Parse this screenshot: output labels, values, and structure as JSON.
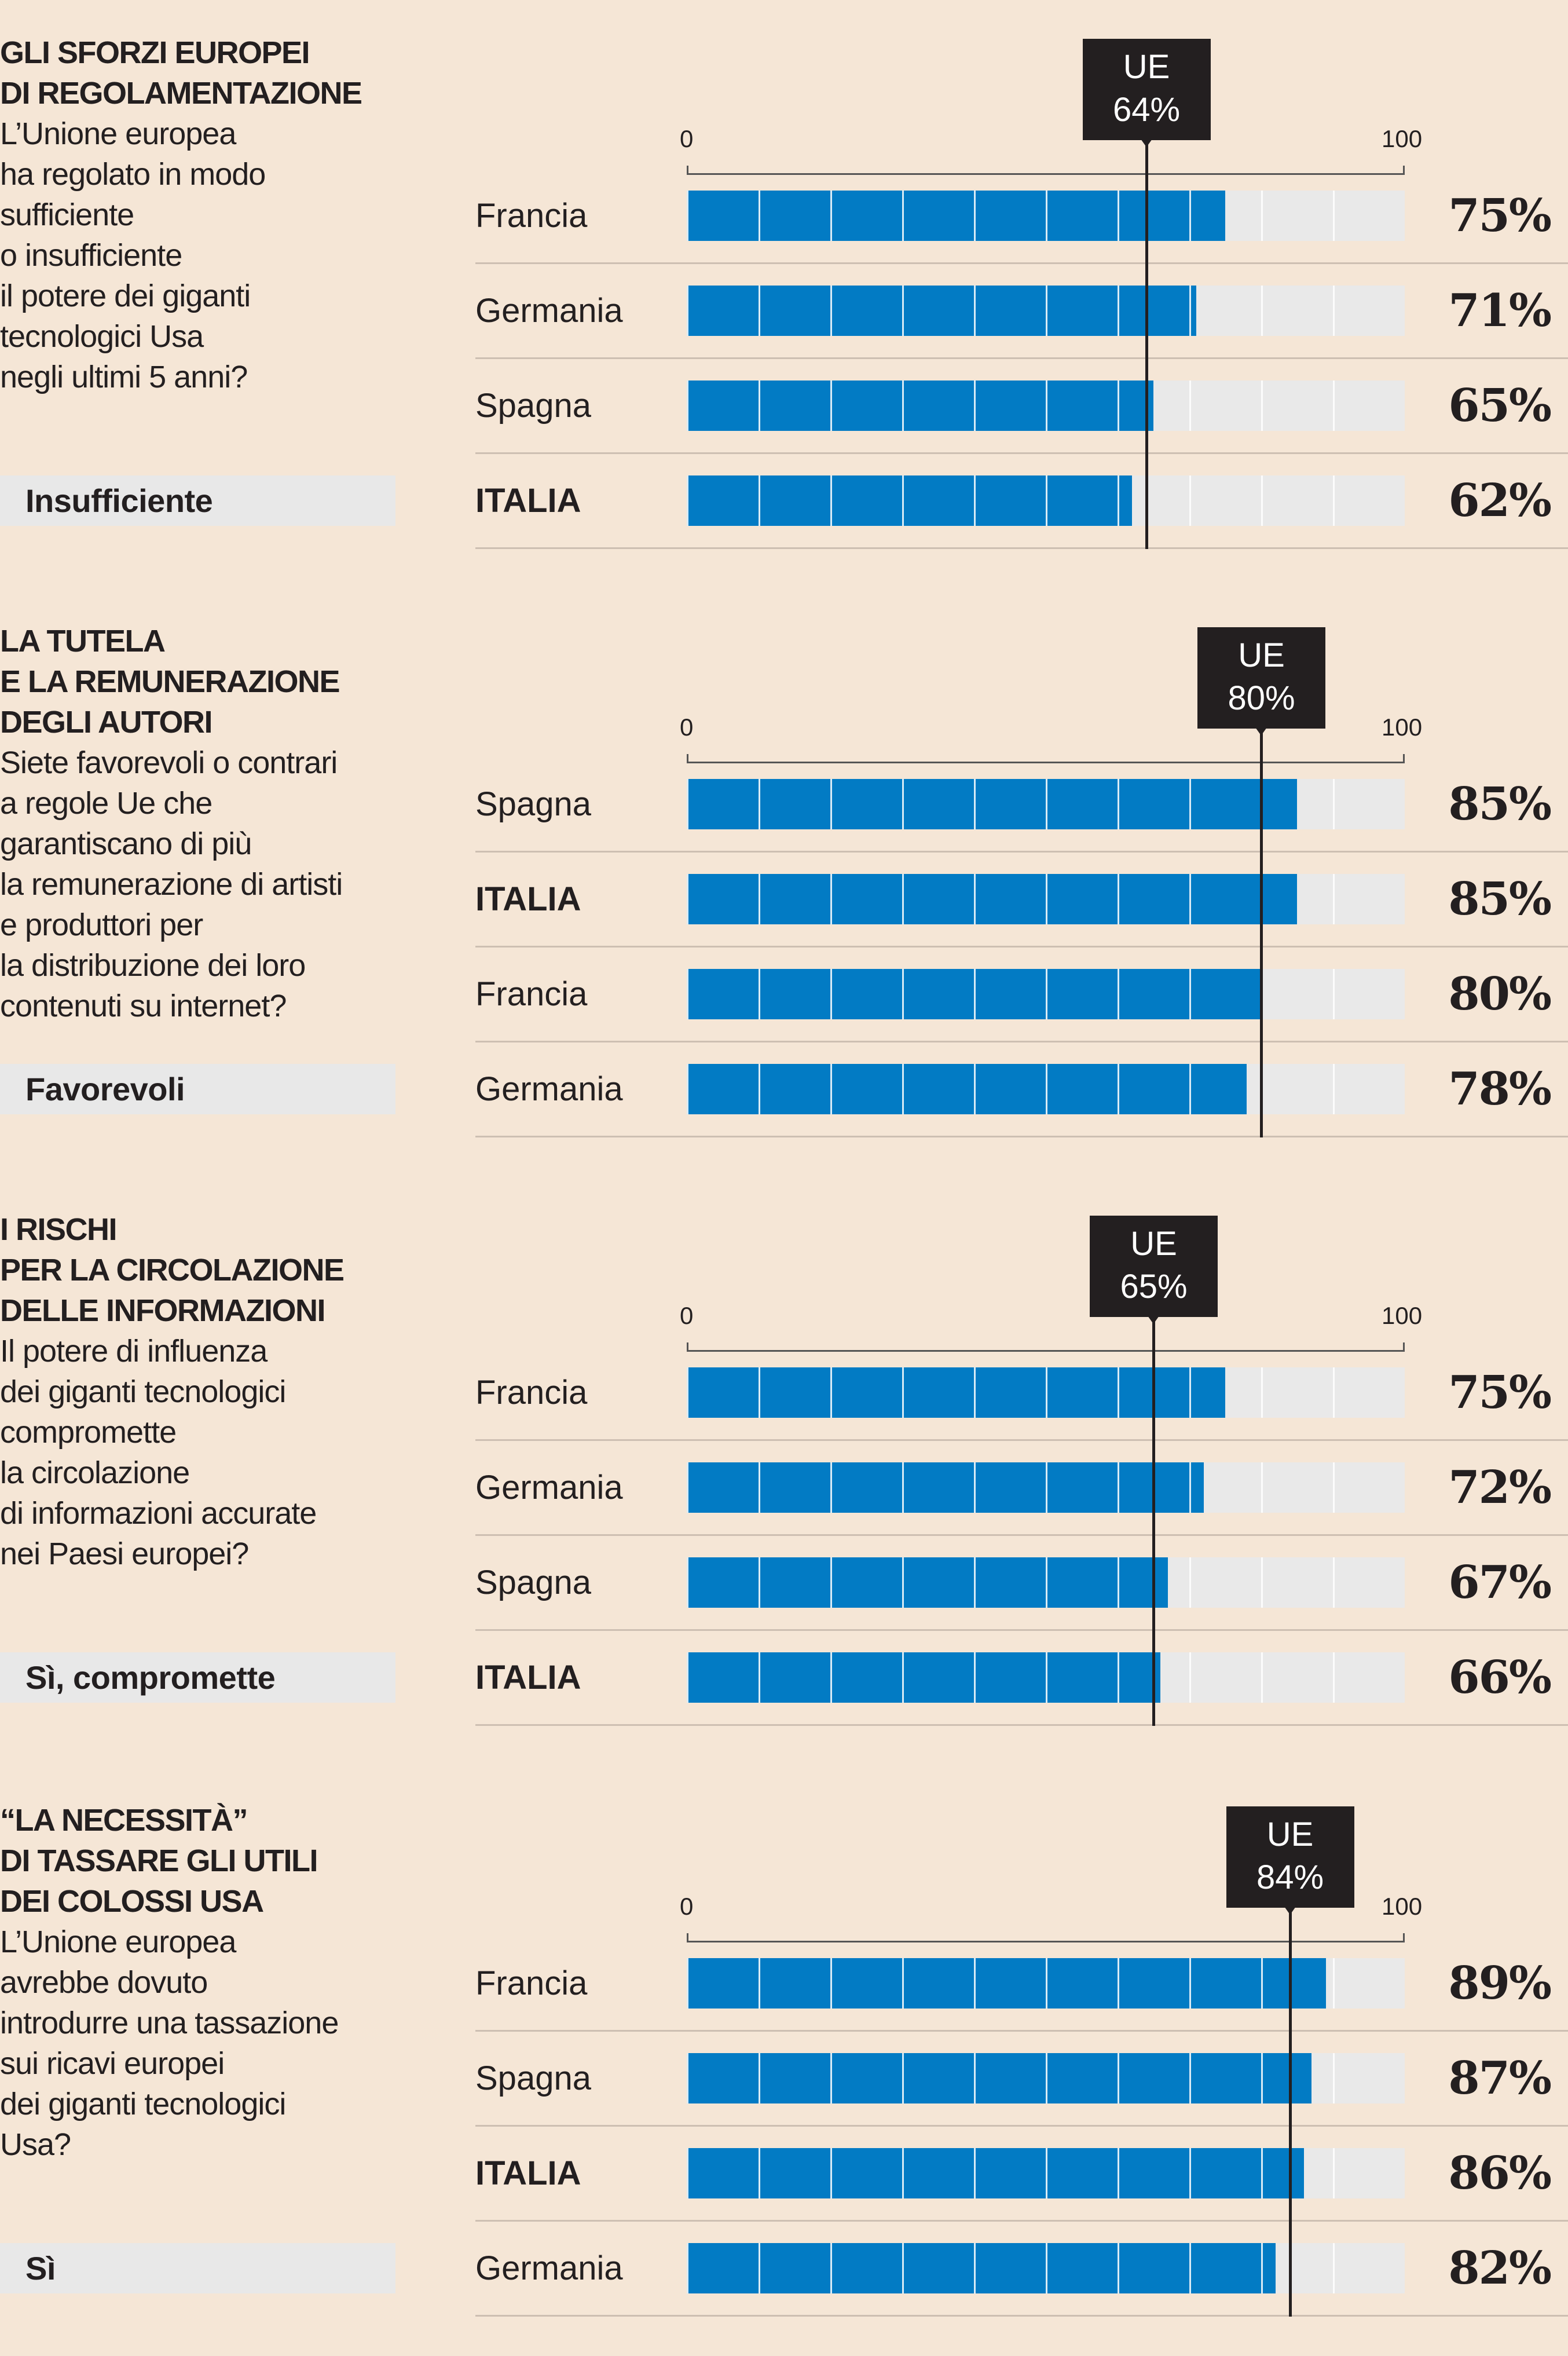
{
  "axis": {
    "min_label": "0",
    "max_label": "100"
  },
  "colors": {
    "bar": "#027bc4",
    "track": "#e9e9e9",
    "marker": "#231f20",
    "background": "#f5e6d6"
  },
  "chart_data": [
    {
      "type": "bar",
      "title": "GLI SFORZI EUROPEI DI REGOLAMENTAZIONE",
      "title_lines": [
        "GLI SFORZI EUROPEI",
        "DI REGOLAMENTAZIONE"
      ],
      "question_lines": [
        "L’Unione europea",
        "ha regolato in modo",
        "sufficiente",
        "o insufficiente",
        "il potere dei giganti",
        "tecnologici Usa",
        "negli ultimi 5 anni?"
      ],
      "answer": "Insufficiente",
      "eu_label": "UE",
      "eu_value": 64,
      "eu_text": "64%",
      "categories": [
        "Francia",
        "Germania",
        "Spagna",
        "ITALIA"
      ],
      "values": [
        75,
        71,
        65,
        62
      ],
      "value_labels": [
        "75%",
        "71%",
        "65%",
        "62%"
      ],
      "xlim": [
        0,
        100
      ]
    },
    {
      "type": "bar",
      "title": "LA TUTELA E LA REMUNERAZIONE DEGLI AUTORI",
      "title_lines": [
        "LA TUTELA",
        "E LA REMUNERAZIONE",
        "DEGLI AUTORI"
      ],
      "question_lines": [
        "Siete favorevoli o contrari",
        "a regole Ue che",
        "garantiscano di più",
        "la remunerazione di artisti",
        "e produttori per",
        "la distribuzione  dei loro",
        "contenuti su internet?"
      ],
      "answer": "Favorevoli",
      "eu_label": "UE",
      "eu_value": 80,
      "eu_text": "80%",
      "categories": [
        "Spagna",
        "ITALIA",
        "Francia",
        "Germania"
      ],
      "values": [
        85,
        85,
        80,
        78
      ],
      "value_labels": [
        "85%",
        "85%",
        "80%",
        "78%"
      ],
      "xlim": [
        0,
        100
      ]
    },
    {
      "type": "bar",
      "title": "I RISCHI PER LA CIRCOLAZIONE DELLE INFORMAZIONI",
      "title_lines": [
        "I RISCHI",
        "PER LA CIRCOLAZIONE",
        "DELLE INFORMAZIONI"
      ],
      "question_lines": [
        "Il potere di influenza",
        "dei giganti tecnologici",
        "compromette",
        "la circolazione",
        "di informazioni accurate",
        "nei Paesi europei?"
      ],
      "answer": "Sì, compromette",
      "eu_label": "UE",
      "eu_value": 65,
      "eu_text": "65%",
      "categories": [
        "Francia",
        "Germania",
        "Spagna",
        "ITALIA"
      ],
      "values": [
        75,
        72,
        67,
        66
      ],
      "value_labels": [
        "75%",
        "72%",
        "67%",
        "66%"
      ],
      "xlim": [
        0,
        100
      ]
    },
    {
      "type": "bar",
      "title": "“LA NECESSITÀ” DI TASSARE GLI UTILI DEI COLOSSI USA",
      "title_lines": [
        "“LA NECESSITÀ”",
        "DI TASSARE GLI UTILI",
        "DEI COLOSSI USA"
      ],
      "question_lines": [
        "L’Unione europea",
        "avrebbe dovuto",
        "introdurre una tassazione",
        "sui ricavi europei",
        "dei giganti tecnologici",
        "Usa?"
      ],
      "answer": "Sì",
      "eu_label": "UE",
      "eu_value": 84,
      "eu_text": "84%",
      "categories": [
        "Francia",
        "Spagna",
        "ITALIA",
        "Germania"
      ],
      "values": [
        89,
        87,
        86,
        82
      ],
      "value_labels": [
        "89%",
        "87%",
        "86%",
        "82%"
      ],
      "xlim": [
        0,
        100
      ]
    }
  ]
}
